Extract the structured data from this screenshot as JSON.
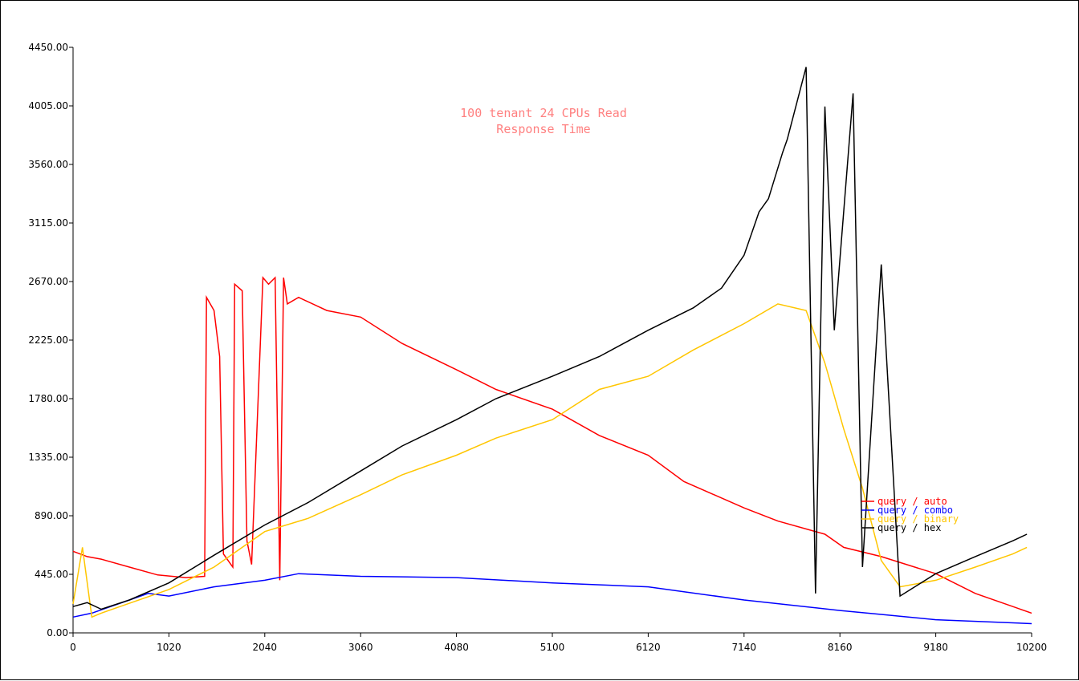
{
  "chart_data": {
    "type": "line",
    "title": [
      "100 tenant 24 CPUs Read",
      "Response Time"
    ],
    "xlabel": "",
    "ylabel": "",
    "xlim": [
      0,
      10200
    ],
    "ylim": [
      0,
      4450
    ],
    "x_ticks": [
      0,
      1020,
      2040,
      3060,
      4080,
      5100,
      6120,
      7140,
      8160,
      9180,
      10200
    ],
    "x_tick_labels": [
      "0",
      "1020",
      "2040",
      "3060",
      "4080",
      "5100",
      "6120",
      "7140",
      "8160",
      "9180",
      "10200"
    ],
    "y_ticks": [
      0,
      445,
      890,
      1335,
      1780,
      2225,
      2670,
      3115,
      3560,
      4005,
      4450
    ],
    "y_tick_labels": [
      "0.00",
      "445.00",
      "890.00",
      "1335.00",
      "1780.00",
      "2225.00",
      "2670.00",
      "3115.00",
      "3560.00",
      "4005.00",
      "4450.00"
    ],
    "grid": false,
    "legend_position": "right",
    "series": [
      {
        "name": "query / auto",
        "color": "#ff0000",
        "x": [
          0,
          150,
          300,
          600,
          900,
          1200,
          1400,
          1420,
          1500,
          1560,
          1600,
          1700,
          1720,
          1800,
          1850,
          1900,
          2020,
          2080,
          2150,
          2200,
          2240,
          2280,
          2400,
          2700,
          3060,
          3500,
          4080,
          4500,
          5100,
          5600,
          6120,
          6500,
          7140,
          7500,
          8000,
          8200,
          8600,
          9180,
          9600,
          10000,
          10200
        ],
        "y": [
          620,
          580,
          560,
          500,
          440,
          420,
          430,
          2550,
          2450,
          2100,
          600,
          500,
          2650,
          2600,
          700,
          520,
          2700,
          2650,
          2700,
          400,
          2700,
          2500,
          2550,
          2450,
          2400,
          2200,
          2000,
          1850,
          1700,
          1500,
          1350,
          1150,
          950,
          850,
          750,
          650,
          580,
          450,
          300,
          200,
          150
        ]
      },
      {
        "name": "query / combo",
        "color": "#0000ff",
        "x": [
          0,
          200,
          600,
          800,
          1020,
          1500,
          2040,
          2400,
          3060,
          4080,
          5100,
          6120,
          7140,
          8160,
          8600,
          9180,
          10200
        ],
        "y": [
          120,
          150,
          250,
          300,
          280,
          350,
          400,
          450,
          430,
          420,
          380,
          350,
          250,
          170,
          140,
          100,
          70
        ]
      },
      {
        "name": "query / binary",
        "color": "#ffc600",
        "x": [
          0,
          100,
          200,
          300,
          500,
          1020,
          1500,
          2040,
          2500,
          3060,
          3500,
          4080,
          4500,
          5100,
          5600,
          6120,
          6600,
          7140,
          7500,
          7800,
          8000,
          8200,
          8400,
          8600,
          8800,
          9180,
          9600,
          10000,
          10150
        ],
        "y": [
          220,
          650,
          120,
          150,
          200,
          330,
          500,
          770,
          870,
          1050,
          1200,
          1350,
          1480,
          1620,
          1850,
          1950,
          2150,
          2350,
          2500,
          2450,
          2050,
          1550,
          1100,
          550,
          350,
          400,
          500,
          600,
          650
        ]
      },
      {
        "name": "query / hex",
        "color": "#000000",
        "x": [
          0,
          150,
          300,
          600,
          1020,
          1500,
          2040,
          2500,
          3060,
          3500,
          4080,
          4500,
          5100,
          5600,
          6120,
          6600,
          6900,
          7140,
          7300,
          7400,
          7550,
          7600,
          7800,
          7900,
          8000,
          8100,
          8300,
          8400,
          8600,
          8800,
          9180,
          9600,
          10000,
          10150
        ],
        "y": [
          200,
          230,
          180,
          250,
          380,
          590,
          820,
          990,
          1230,
          1420,
          1620,
          1780,
          1950,
          2100,
          2300,
          2470,
          2620,
          2870,
          3200,
          3300,
          3650,
          3750,
          4300,
          300,
          4000,
          2300,
          4100,
          500,
          2800,
          280,
          450,
          580,
          700,
          750
        ]
      }
    ]
  }
}
